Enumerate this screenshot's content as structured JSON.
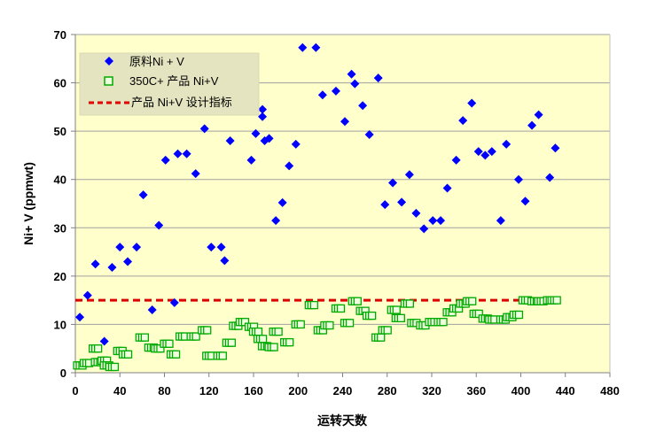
{
  "chart_data": {
    "type": "scatter",
    "xlabel": "运转天数",
    "ylabel": "Ni+ V (ppmwt)",
    "xlim": [
      0,
      480
    ],
    "ylim": [
      0,
      70
    ],
    "xticks": [
      0,
      40,
      80,
      120,
      160,
      200,
      240,
      280,
      320,
      360,
      400,
      440,
      480
    ],
    "yticks": [
      0,
      10,
      20,
      30,
      40,
      50,
      60,
      70
    ],
    "grid": "horizontal",
    "legend_position": "top-left",
    "plot_background": "#FFFFCC",
    "series": [
      {
        "name": "原料Ni + V",
        "marker": "diamond",
        "color": "#0000FF",
        "points": [
          [
            4,
            11.5
          ],
          [
            11,
            16
          ],
          [
            18,
            22.5
          ],
          [
            26,
            6.5
          ],
          [
            33,
            21.8
          ],
          [
            40,
            26
          ],
          [
            47,
            23
          ],
          [
            55,
            26
          ],
          [
            61,
            36.8
          ],
          [
            69,
            13
          ],
          [
            75,
            30.5
          ],
          [
            81,
            44
          ],
          [
            89,
            14.5
          ],
          [
            92,
            45.3
          ],
          [
            100,
            45.3
          ],
          [
            108,
            41.2
          ],
          [
            116,
            50.5
          ],
          [
            122,
            26
          ],
          [
            131,
            26
          ],
          [
            134,
            23.2
          ],
          [
            139,
            48
          ],
          [
            158,
            44
          ],
          [
            162,
            49.5
          ],
          [
            168,
            54.5
          ],
          [
            168,
            53
          ],
          [
            170,
            48
          ],
          [
            174,
            48.5
          ],
          [
            180,
            31.5
          ],
          [
            186,
            35.2
          ],
          [
            192,
            42.8
          ],
          [
            198,
            47.3
          ],
          [
            204,
            67.3
          ],
          [
            216,
            67.3
          ],
          [
            222,
            57.5
          ],
          [
            234,
            58.3
          ],
          [
            242,
            52
          ],
          [
            248,
            61.8
          ],
          [
            251,
            59.8
          ],
          [
            258,
            55.3
          ],
          [
            264,
            49.3
          ],
          [
            272,
            61
          ],
          [
            278,
            34.8
          ],
          [
            285,
            39.3
          ],
          [
            293,
            35.3
          ],
          [
            300,
            41
          ],
          [
            306,
            33
          ],
          [
            313,
            29.8
          ],
          [
            321,
            31.5
          ],
          [
            328,
            31.5
          ],
          [
            334,
            38.2
          ],
          [
            342,
            44
          ],
          [
            348,
            52.2
          ],
          [
            356,
            55.8
          ],
          [
            362,
            45.8
          ],
          [
            368,
            45
          ],
          [
            374,
            45.8
          ],
          [
            382,
            31.5
          ],
          [
            387,
            47.3
          ],
          [
            398,
            40
          ],
          [
            404,
            35.5
          ],
          [
            410,
            51.2
          ],
          [
            416,
            53.4
          ],
          [
            426,
            40.4
          ],
          [
            431,
            46.5
          ]
        ]
      },
      {
        "name": "350C+ 产品 Ni+V",
        "marker": "square",
        "color": "#00AA00",
        "points": [
          [
            4,
            1.5
          ],
          [
            10,
            2
          ],
          [
            18,
            5
          ],
          [
            20,
            2.2
          ],
          [
            26,
            2.5
          ],
          [
            28,
            1.5
          ],
          [
            33,
            1.2
          ],
          [
            40,
            4.5
          ],
          [
            45,
            3.8
          ],
          [
            60,
            7.3
          ],
          [
            68,
            5.2
          ],
          [
            74,
            5
          ],
          [
            82,
            6
          ],
          [
            88,
            3.8
          ],
          [
            96,
            7.5
          ],
          [
            106,
            7.5
          ],
          [
            116,
            8.8
          ],
          [
            120,
            3.5
          ],
          [
            130,
            3.5
          ],
          [
            138,
            6.2
          ],
          [
            144,
            9.7
          ],
          [
            150,
            10.5
          ],
          [
            158,
            9.5
          ],
          [
            162,
            8.5
          ],
          [
            166,
            7
          ],
          [
            170,
            5.5
          ],
          [
            176,
            5.3
          ],
          [
            180,
            8.5
          ],
          [
            190,
            6.3
          ],
          [
            200,
            10
          ],
          [
            212,
            14
          ],
          [
            220,
            8.8
          ],
          [
            226,
            9.8
          ],
          [
            236,
            13.3
          ],
          [
            244,
            10.3
          ],
          [
            251,
            14.8
          ],
          [
            258,
            12.8
          ],
          [
            264,
            11.8
          ],
          [
            272,
            7.3
          ],
          [
            278,
            8.8
          ],
          [
            286,
            13
          ],
          [
            290,
            11.3
          ],
          [
            298,
            14.3
          ],
          [
            304,
            10.3
          ],
          [
            312,
            9.8
          ],
          [
            320,
            10.5
          ],
          [
            328,
            10.5
          ],
          [
            336,
            12.5
          ],
          [
            342,
            13.3
          ],
          [
            348,
            14.3
          ],
          [
            354,
            14.8
          ],
          [
            360,
            12.2
          ],
          [
            368,
            11.2
          ],
          [
            374,
            11
          ],
          [
            384,
            11
          ],
          [
            390,
            11.5
          ],
          [
            396,
            12
          ],
          [
            404,
            15
          ],
          [
            412,
            14.8
          ],
          [
            418,
            14.8
          ],
          [
            426,
            15
          ],
          [
            430,
            15
          ]
        ]
      },
      {
        "name": "产品 Ni+V 设计指标",
        "type": "line",
        "style": "dashed",
        "color": "#DD0000",
        "points": [
          [
            0,
            15
          ],
          [
            432,
            15
          ]
        ]
      }
    ]
  }
}
